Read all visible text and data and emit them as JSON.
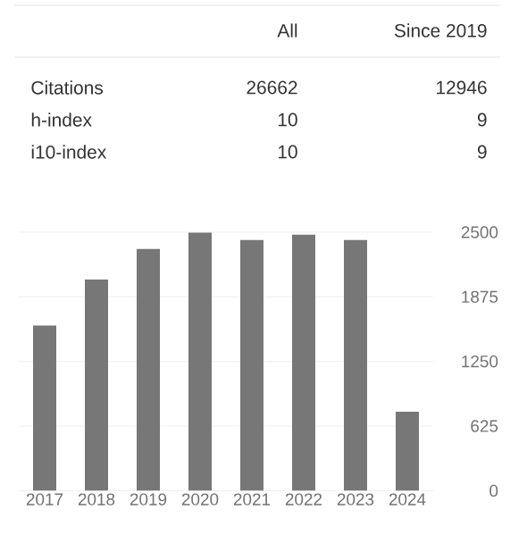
{
  "chart_data": {
    "type": "bar",
    "annotations": [
      "All",
      "Since 2019",
      "Citations",
      "26662",
      "12946",
      "h-index",
      "10",
      "9",
      "i10-index",
      "10",
      "9"
    ],
    "categories": [
      "2017",
      "2018",
      "2019",
      "2020",
      "2021",
      "2022",
      "2023",
      "2024"
    ],
    "values": [
      1597,
      2043,
      2338,
      2495,
      2425,
      2477,
      2425,
      764
    ],
    "color": "#777777",
    "ylim": [
      0,
      2500
    ],
    "yticks": [
      0,
      625,
      1250,
      1875,
      2500
    ],
    "grid": "y"
  }
}
